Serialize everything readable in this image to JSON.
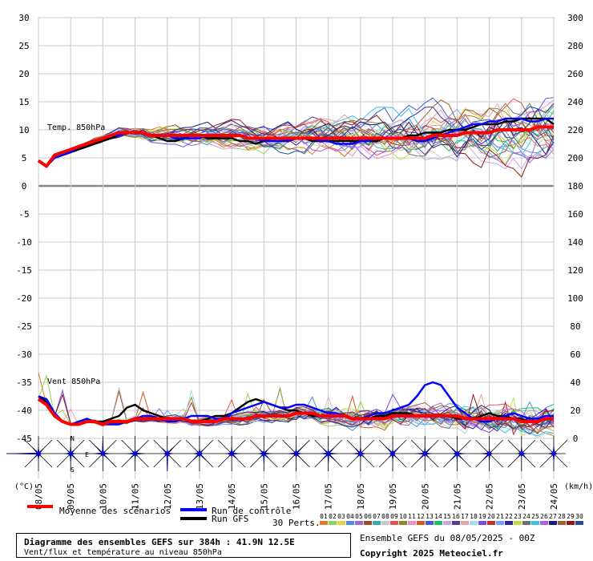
{
  "footer": {
    "title": "Diagramme des ensembles GEFS sur 384h : 41.9N 12.5E",
    "subtitle": "Vent/flux et température au niveau 850hPa",
    "run": "Ensemble GEFS du 08/05/2025 - 00Z",
    "copyright": "Copyright 2025 Meteociel.fr"
  },
  "legend": {
    "mean": "Moyenne des scénarios",
    "control": "Run de contrôle",
    "gfs": "Run GFS",
    "perts_label": "30 Perts.",
    "pert_numbers": [
      "01",
      "02",
      "03",
      "04",
      "05",
      "06",
      "07",
      "08",
      "09",
      "10",
      "11",
      "12",
      "13",
      "14",
      "15",
      "16",
      "17",
      "18",
      "19",
      "20",
      "21",
      "22",
      "23",
      "24",
      "25",
      "26",
      "27",
      "28",
      "29",
      "30"
    ],
    "pert_colors": [
      "#e07a2a",
      "#8fd45a",
      "#e8d43a",
      "#4a8ee8",
      "#9a6ad8",
      "#a04a2a",
      "#3aa8a8",
      "#c8c8c8",
      "#e85050",
      "#8a8a2a",
      "#e890c8",
      "#d85a1a",
      "#3a5ad8",
      "#20c060",
      "#c8a8e8",
      "#5a3a8a",
      "#e8a0a0",
      "#a0e0f0",
      "#7a4ae8",
      "#c03030",
      "#70a0ff",
      "#2a2a9a",
      "#c0e040",
      "#707070",
      "#40c0e8",
      "#b060e0",
      "#1a1a7a",
      "#a06030",
      "#901818",
      "#2050a0"
    ]
  },
  "labels": {
    "left_unit": "(°C)",
    "right_unit": "(km/h)",
    "temp_series": "Temp. 850hPa",
    "wind_series": "Vent 850hPa",
    "north": "N",
    "south": "S",
    "east": "E"
  },
  "chart_data": {
    "type": "line",
    "x": [
      "08/05",
      "09/05",
      "10/05",
      "11/05",
      "12/05",
      "13/05",
      "14/05",
      "15/05",
      "16/05",
      "17/05",
      "18/05",
      "19/05",
      "20/05",
      "21/05",
      "22/05",
      "23/05",
      "24/05"
    ],
    "x_step_hours": 6,
    "left_axis": {
      "label": "(°C)",
      "ticks": [
        30,
        25,
        20,
        15,
        10,
        5,
        0,
        -5,
        -10,
        -15,
        -20,
        -25,
        -30,
        -35,
        -40,
        -45
      ],
      "range": [
        -45,
        30
      ]
    },
    "right_axis": {
      "label": "(km/h)",
      "ticks": [
        300,
        280,
        260,
        240,
        220,
        200,
        180,
        160,
        140,
        120,
        100,
        80,
        60,
        40,
        20,
        0
      ],
      "range": [
        0,
        300
      ]
    },
    "grid": true,
    "series": [
      {
        "name": "Moyenne des scénarios",
        "values": {
          "temp_850hPa_C": [
            4.5,
            3.5,
            5.5,
            6,
            6.5,
            7,
            7.5,
            8,
            8.5,
            9,
            9.5,
            9.5,
            9.5,
            9.5,
            9,
            9,
            9,
            9,
            9,
            9,
            9,
            9,
            9,
            9,
            9,
            9,
            8.5,
            8.5,
            8.5,
            8.5,
            8.5,
            8.5,
            8.5,
            8.5,
            8.5,
            8.5,
            8.5,
            8.5,
            8.5,
            8.5,
            8.5,
            8.5,
            8.5,
            8.5,
            8.5,
            8.5,
            8.5,
            8.5,
            8.5,
            9,
            9,
            9,
            9,
            9.5,
            9.5,
            9.5,
            9.5,
            10,
            10,
            10,
            10,
            10,
            10.5,
            10.5,
            10.5
          ],
          "wind_850hPa_kmh": [
            28,
            24,
            16,
            12,
            10,
            10,
            12,
            12,
            10,
            12,
            12,
            12,
            14,
            14,
            14,
            14,
            14,
            14,
            14,
            12,
            12,
            12,
            12,
            14,
            14,
            14,
            14,
            16,
            16,
            16,
            16,
            16,
            18,
            18,
            18,
            16,
            16,
            16,
            16,
            14,
            14,
            14,
            14,
            14,
            16,
            16,
            16,
            16,
            16,
            16,
            16,
            16,
            16,
            14,
            14,
            14,
            14,
            14,
            14,
            14,
            12,
            12,
            12,
            14,
            14
          ]
        }
      },
      {
        "name": "Run de contrôle",
        "values": {
          "temp_850hPa_C": [
            4.5,
            3.5,
            5,
            5.5,
            6,
            7,
            7.5,
            8,
            8.5,
            9,
            9,
            9.5,
            9.5,
            9.5,
            9,
            9,
            9,
            8.5,
            8.5,
            8.5,
            8.5,
            9,
            9,
            9,
            9,
            9,
            8.5,
            8.5,
            8,
            8,
            8,
            8,
            8.5,
            8.5,
            8.5,
            8,
            8,
            7.5,
            7.5,
            7.5,
            8,
            8,
            8.5,
            8.5,
            8.5,
            8.5,
            8.5,
            8,
            8,
            8.5,
            9,
            9.5,
            10,
            10.5,
            11,
            11,
            11.5,
            11.5,
            12,
            12,
            12,
            11.5,
            11.5,
            12,
            12
          ],
          "wind_850hPa_kmh": [
            30,
            28,
            18,
            12,
            10,
            12,
            14,
            12,
            10,
            10,
            10,
            12,
            14,
            16,
            16,
            14,
            12,
            12,
            14,
            16,
            16,
            16,
            14,
            14,
            18,
            20,
            22,
            24,
            26,
            24,
            22,
            22,
            24,
            24,
            22,
            20,
            18,
            18,
            16,
            14,
            14,
            16,
            18,
            18,
            20,
            22,
            24,
            30,
            38,
            40,
            38,
            30,
            22,
            18,
            14,
            12,
            12,
            14,
            16,
            18,
            16,
            14,
            14,
            16,
            16
          ]
        }
      },
      {
        "name": "Run GFS",
        "values": {
          "temp_850hPa_C": [
            4.5,
            3.5,
            5,
            5.5,
            6,
            6.5,
            7,
            7.5,
            8,
            8.5,
            9,
            9.5,
            9.5,
            9.5,
            9,
            8.5,
            8,
            8,
            8.5,
            9,
            9,
            8.5,
            8.5,
            8.5,
            8.5,
            8,
            8,
            7.5,
            8,
            8.5,
            8.5,
            8.5,
            8.5,
            8.5,
            8,
            8,
            8,
            8,
            8,
            8,
            8,
            8,
            8,
            8.5,
            8.5,
            8.5,
            9,
            9,
            9.5,
            9.5,
            9.5,
            10,
            10,
            10,
            10.5,
            11,
            11,
            11,
            11.5,
            11.5,
            12,
            12,
            12,
            12,
            11
          ],
          "wind_850hPa_kmh": [
            30,
            26,
            18,
            12,
            10,
            10,
            12,
            12,
            12,
            14,
            16,
            22,
            24,
            20,
            18,
            16,
            14,
            14,
            14,
            12,
            12,
            14,
            16,
            16,
            18,
            22,
            26,
            28,
            26,
            24,
            22,
            20,
            20,
            18,
            16,
            16,
            16,
            16,
            16,
            14,
            14,
            14,
            16,
            16,
            18,
            18,
            18,
            16,
            16,
            16,
            16,
            16,
            14,
            14,
            14,
            16,
            18,
            16,
            16,
            14,
            14,
            12,
            12,
            14,
            14
          ]
        }
      }
    ]
  }
}
